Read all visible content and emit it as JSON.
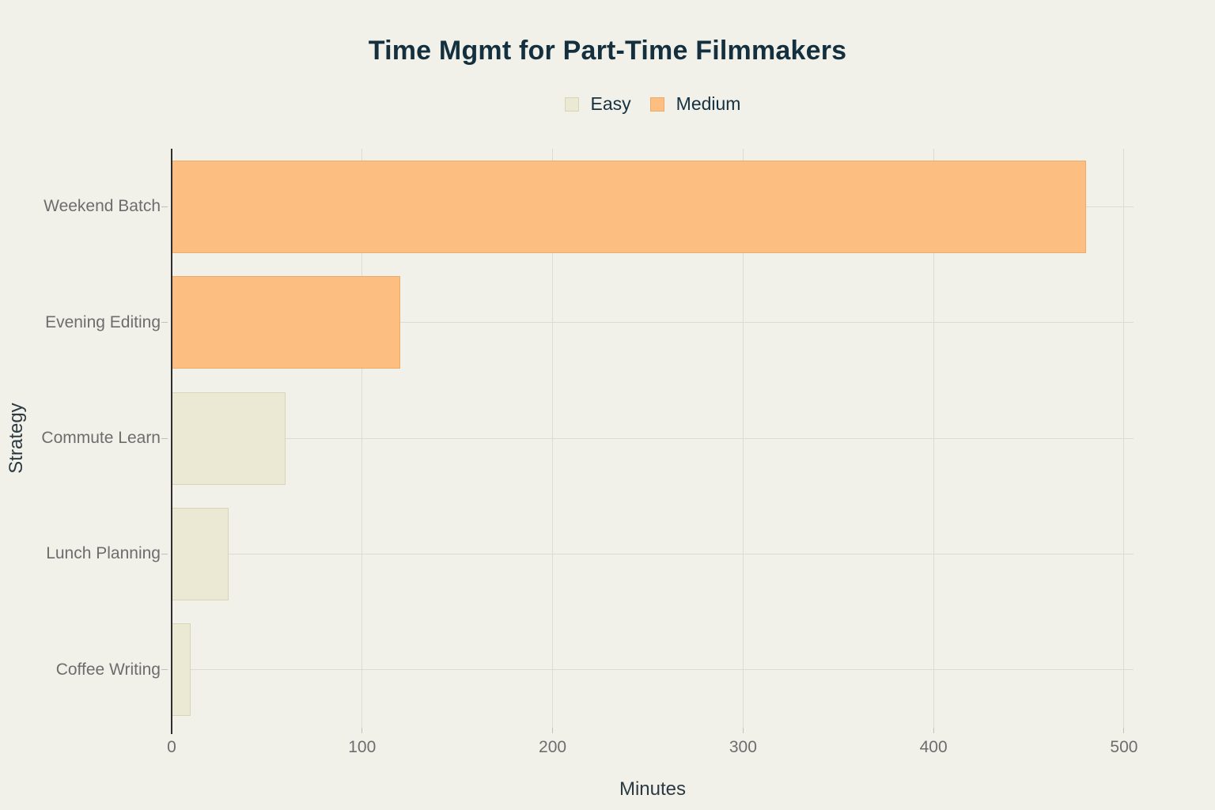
{
  "chart_data": {
    "type": "bar",
    "orientation": "horizontal",
    "title": "Time Mgmt for Part-Time Filmmakers",
    "xlabel": "Minutes",
    "ylabel": "Strategy",
    "categories": [
      "Weekend Batch",
      "Evening Editing",
      "Commute Learn",
      "Lunch Planning",
      "Coffee Writing"
    ],
    "values": [
      480,
      120,
      60,
      30,
      10
    ],
    "point_series": [
      "Medium",
      "Medium",
      "Easy",
      "Easy",
      "Easy"
    ],
    "series": [
      {
        "name": "Easy",
        "color": "#ebe9d4",
        "border_color": "#d8d5b6",
        "values": [
          null,
          null,
          60,
          30,
          10
        ]
      },
      {
        "name": "Medium",
        "color": "#fdbe82",
        "border_color": "#edaa69",
        "values": [
          480,
          120,
          null,
          null,
          null
        ]
      }
    ],
    "xticks": [
      0,
      100,
      200,
      300,
      400,
      500
    ],
    "xlim": [
      0,
      505
    ],
    "grid": true,
    "legend_position": "top-center"
  },
  "styles": {
    "background": "#f1f1ea",
    "grid_color": "#dcdbd3",
    "tick_color": "#c2c1ba",
    "zeroline_color": "#2e2e2e",
    "tick_label_color": "#6d6d6d",
    "axis_title_color": "#2c3a42",
    "title_color": "#14303f",
    "legend_text_color": "#16313f"
  }
}
